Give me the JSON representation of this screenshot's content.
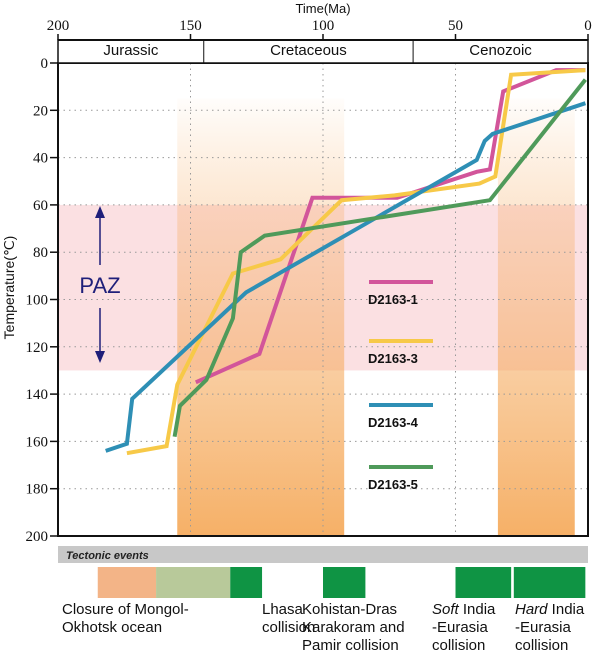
{
  "chart_data": {
    "type": "line",
    "xlabel": "Time(Ma)",
    "ylabel": "Temperature(℃)",
    "xlim": [
      200,
      0
    ],
    "ylim": [
      0,
      200
    ],
    "x_ticks": [
      200,
      150,
      100,
      50,
      0
    ],
    "y_ticks": [
      0,
      20,
      40,
      60,
      80,
      100,
      120,
      140,
      160,
      180,
      200
    ],
    "periods": [
      {
        "name": "Jurassic",
        "start": 200,
        "end": 145
      },
      {
        "name": "Cretaceous",
        "start": 145,
        "end": 66
      },
      {
        "name": "Cenozoic",
        "start": 66,
        "end": 0
      }
    ],
    "paz": {
      "label": "PAZ",
      "top": 60,
      "bottom": 130,
      "color": "#fbe0e2",
      "arrow_color": "#1f1f7a"
    },
    "orange_bands": [
      {
        "start": 155,
        "end": 92
      },
      {
        "start": 34,
        "end": 5
      }
    ],
    "series": [
      {
        "name": "D2163-1",
        "color": "#d2559a",
        "points": [
          [
            148,
            135
          ],
          [
            124,
            123
          ],
          [
            104,
            57
          ],
          [
            72,
            57
          ],
          [
            42,
            46
          ],
          [
            37,
            45
          ],
          [
            32,
            12
          ],
          [
            12,
            3
          ],
          [
            1,
            3
          ]
        ]
      },
      {
        "name": "D2163-3",
        "color": "#f7c948",
        "points": [
          [
            174,
            165
          ],
          [
            159,
            162
          ],
          [
            155,
            136
          ],
          [
            134,
            89
          ],
          [
            116,
            83
          ],
          [
            93,
            58
          ],
          [
            73,
            56
          ],
          [
            41,
            51
          ],
          [
            35,
            48
          ],
          [
            29,
            5
          ],
          [
            1,
            3
          ]
        ]
      },
      {
        "name": "D2163-4",
        "color": "#2e8fb5",
        "points": [
          [
            182,
            164
          ],
          [
            174,
            161
          ],
          [
            172,
            142
          ],
          [
            129,
            97
          ],
          [
            42,
            41
          ],
          [
            39,
            33
          ],
          [
            36,
            30
          ],
          [
            1,
            17
          ]
        ]
      },
      {
        "name": "D2163-5",
        "color": "#4f9a5a",
        "points": [
          [
            156,
            158
          ],
          [
            154,
            145
          ],
          [
            144,
            134
          ],
          [
            134,
            108
          ],
          [
            131,
            80
          ],
          [
            122,
            73
          ],
          [
            37,
            58
          ],
          [
            1,
            7
          ]
        ]
      }
    ],
    "legend": {
      "placement": "center-right"
    }
  },
  "tectonic": {
    "header": "Tectonic events",
    "events": [
      {
        "label_lines": [
          "Closure of Mongol-",
          "Okhotsk ocean"
        ],
        "boxes": [
          {
            "start": 185,
            "end": 163,
            "color": "#f3b487"
          },
          {
            "start": 163,
            "end": 135,
            "color": "#b8c99a"
          }
        ]
      },
      {
        "label_lines": [
          "Lhasa",
          "collision"
        ],
        "boxes": [
          {
            "start": 135,
            "end": 123,
            "color": "#0f9444"
          }
        ]
      },
      {
        "label_lines": [
          "Kohistan-Dras",
          "Karakoram and",
          "Pamir collision"
        ],
        "boxes": [
          {
            "start": 100,
            "end": 84,
            "color": "#0f9444"
          }
        ]
      },
      {
        "label_lines": [
          "Soft India",
          "-Eurasia",
          "collision"
        ],
        "emph": "Soft",
        "boxes": [
          {
            "start": 50,
            "end": 29,
            "color": "#0f9444"
          }
        ]
      },
      {
        "label_lines": [
          "Hard India",
          "-Eurasia",
          "collision"
        ],
        "emph": "Hard",
        "boxes": [
          {
            "start": 28,
            "end": 1,
            "color": "#0f9444"
          }
        ]
      }
    ]
  }
}
